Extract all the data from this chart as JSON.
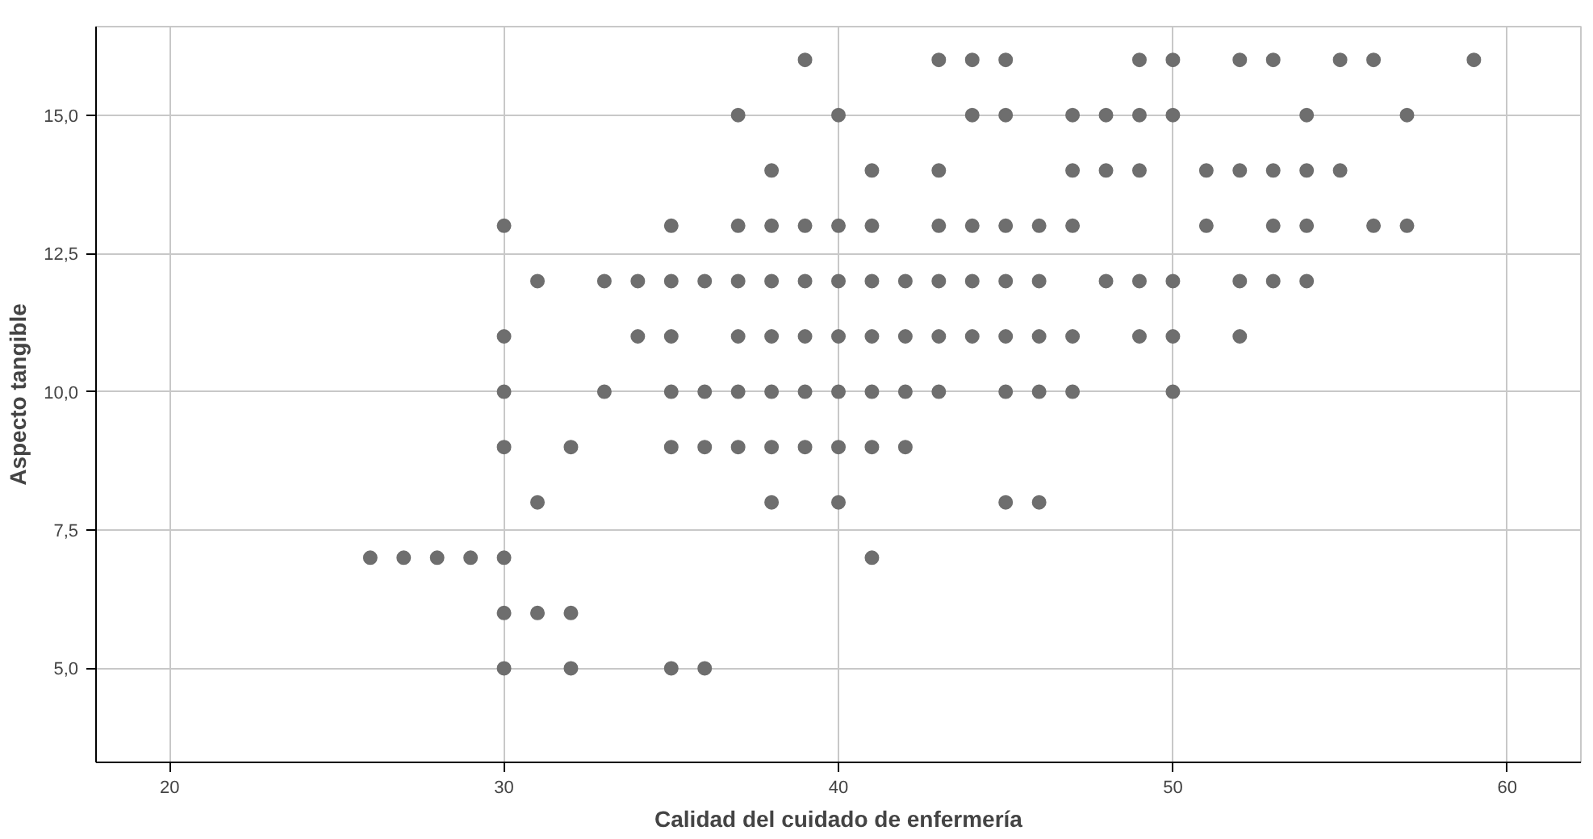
{
  "chart_data": {
    "type": "scatter",
    "xlabel": "Calidad del cuidado de enfermería",
    "ylabel": "Aspecto tangible",
    "xlim": [
      17.8,
      62.2
    ],
    "ylim": [
      3.3,
      16.6
    ],
    "xticks": [
      20,
      30,
      40,
      50,
      60
    ],
    "yticks": [
      {
        "value": 5,
        "label": "5,0"
      },
      {
        "value": 7.5,
        "label": "7,5"
      },
      {
        "value": 10,
        "label": "10,0"
      },
      {
        "value": 12.5,
        "label": "12,5"
      },
      {
        "value": 15,
        "label": "15,0"
      }
    ],
    "grid": true,
    "marker": "circle",
    "series": [
      {
        "color": "#6e6e6e",
        "x": [
          39,
          43,
          44,
          45,
          49,
          50,
          52,
          53,
          55,
          56,
          59,
          37,
          40,
          44,
          45,
          47,
          48,
          49,
          50,
          54,
          57,
          38,
          41,
          43,
          47,
          48,
          49,
          51,
          52,
          53,
          54,
          55,
          30,
          35,
          37,
          38,
          39,
          40,
          41,
          43,
          44,
          45,
          46,
          47,
          51,
          53,
          54,
          56,
          57,
          31,
          33,
          34,
          35,
          36,
          37,
          38,
          39,
          40,
          41,
          42,
          43,
          44,
          45,
          46,
          48,
          49,
          50,
          52,
          53,
          54,
          30,
          34,
          35,
          37,
          38,
          39,
          40,
          41,
          42,
          43,
          44,
          45,
          46,
          47,
          49,
          50,
          52,
          30,
          33,
          35,
          36,
          37,
          38,
          39,
          40,
          41,
          42,
          43,
          45,
          46,
          47,
          50,
          30,
          32,
          35,
          36,
          37,
          38,
          39,
          40,
          41,
          42,
          31,
          38,
          40,
          45,
          46,
          26,
          27,
          28,
          29,
          30,
          41,
          30,
          31,
          32,
          30,
          32,
          35,
          36
        ],
        "values": [
          16,
          16,
          16,
          16,
          16,
          16,
          16,
          16,
          16,
          16,
          16,
          15,
          15,
          15,
          15,
          15,
          15,
          15,
          15,
          15,
          15,
          14,
          14,
          14,
          14,
          14,
          14,
          14,
          14,
          14,
          14,
          14,
          13,
          13,
          13,
          13,
          13,
          13,
          13,
          13,
          13,
          13,
          13,
          13,
          13,
          13,
          13,
          13,
          13,
          12,
          12,
          12,
          12,
          12,
          12,
          12,
          12,
          12,
          12,
          12,
          12,
          12,
          12,
          12,
          12,
          12,
          12,
          12,
          12,
          12,
          11,
          11,
          11,
          11,
          11,
          11,
          11,
          11,
          11,
          11,
          11,
          11,
          11,
          11,
          11,
          11,
          11,
          10,
          10,
          10,
          10,
          10,
          10,
          10,
          10,
          10,
          10,
          10,
          10,
          10,
          10,
          10,
          9,
          9,
          9,
          9,
          9,
          9,
          9,
          9,
          9,
          9,
          8,
          8,
          8,
          8,
          8,
          7,
          7,
          7,
          7,
          7,
          7,
          6,
          6,
          6,
          5,
          5,
          5,
          5
        ]
      }
    ]
  }
}
